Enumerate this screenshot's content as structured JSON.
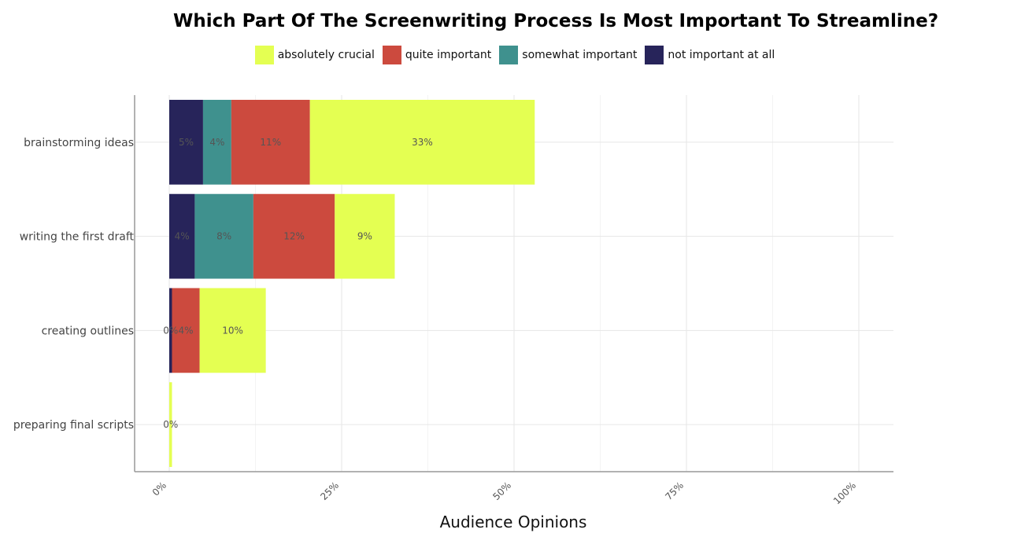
{
  "chart_data": {
    "type": "bar",
    "orientation": "horizontal",
    "stacked": true,
    "title": "Which Part Of The Screenwriting Process Is Most Important To Streamline?",
    "xlabel": "Audience Opinions",
    "ylabel": "",
    "xlim": [
      -10,
      105
    ],
    "x_ticks": [
      "0%",
      "25%",
      "50%",
      "75%",
      "100%"
    ],
    "x_tick_values": [
      0,
      25,
      50,
      75,
      100
    ],
    "grid": true,
    "legend_position": "top",
    "categories": [
      "brainstorming ideas",
      "writing the first draft",
      "creating outlines",
      "preparing final scripts"
    ],
    "series": [
      {
        "name": "not important at all",
        "color": "#27245a",
        "values": [
          4.9,
          3.7,
          0.4,
          0
        ],
        "labels": [
          "5%",
          "4%",
          "0%",
          ""
        ]
      },
      {
        "name": "somewhat important",
        "color": "#3f918e",
        "values": [
          4.1,
          8.5,
          0,
          0
        ],
        "labels": [
          "4%",
          "8%",
          "",
          ""
        ]
      },
      {
        "name": "quite important",
        "color": "#cc4a3e",
        "values": [
          11.4,
          11.8,
          4.0,
          0
        ],
        "labels": [
          "11%",
          "12%",
          "4%",
          ""
        ]
      },
      {
        "name": "absolutely crucial",
        "color": "#e4ff52",
        "values": [
          32.6,
          8.7,
          9.6,
          0.4
        ],
        "labels": [
          "33%",
          "9%",
          "10%",
          "0%"
        ]
      }
    ],
    "legend_order": [
      "absolutely crucial",
      "quite important",
      "somewhat important",
      "not important at all"
    ]
  }
}
